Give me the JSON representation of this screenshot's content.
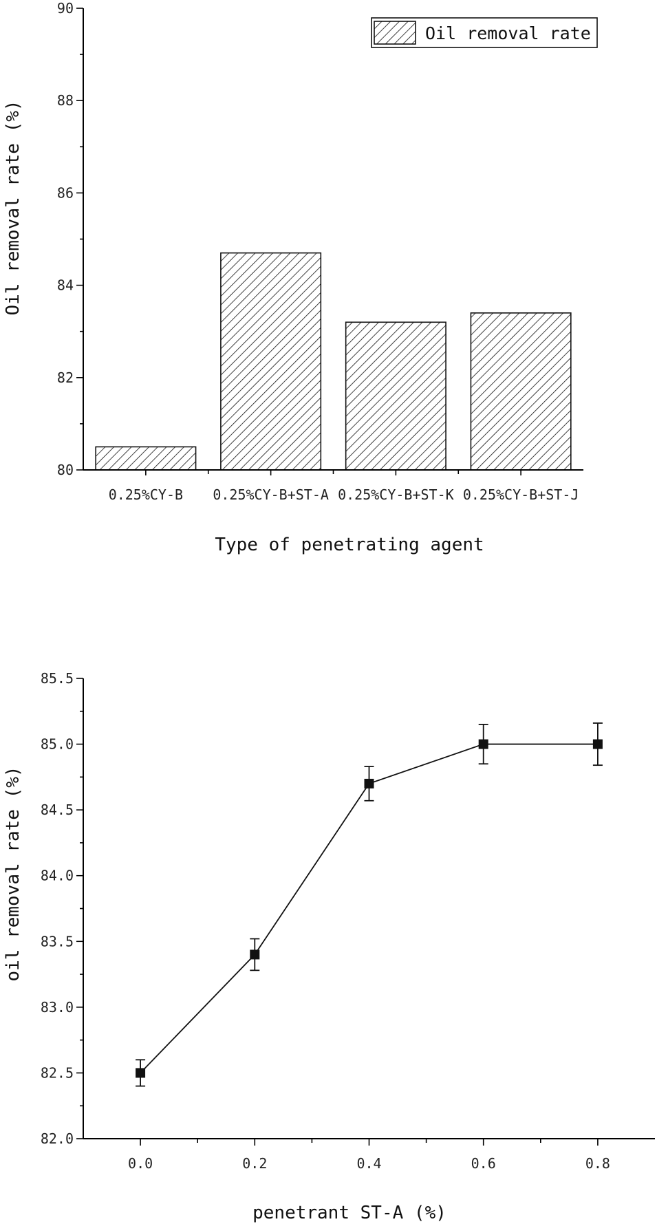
{
  "chart_data": [
    {
      "type": "bar",
      "ylabel": "Oil removal rate (%)",
      "xlabel": "Type of penetrating agent",
      "categories": [
        "0.25%CY-B",
        "0.25%CY-B+ST-A",
        "0.25%CY-B+ST-K",
        "0.25%CY-B+ST-J"
      ],
      "values": [
        80.5,
        84.7,
        83.2,
        83.4
      ],
      "ylim": [
        80,
        90
      ],
      "yticks": [
        "80",
        "82",
        "84",
        "86",
        "88",
        "90"
      ],
      "ytick_values": [
        80,
        82,
        84,
        86,
        88,
        90
      ],
      "series": [
        {
          "name": "Oil removal rate"
        }
      ],
      "legend": "top-right",
      "grid": false,
      "pattern": "diagonal-hatch"
    },
    {
      "type": "line",
      "ylabel": "oil removal rate (%)",
      "xlabel": "penetrant ST-A (%)",
      "x": [
        0.0,
        0.2,
        0.4,
        0.6,
        0.8
      ],
      "values": [
        82.5,
        83.4,
        84.7,
        85.0,
        85.0
      ],
      "errors": [
        0.1,
        0.12,
        0.13,
        0.15,
        0.16
      ],
      "xlim": [
        -0.1,
        0.9
      ],
      "ylim": [
        82.0,
        85.5
      ],
      "xticks": [
        "0.0",
        "0.2",
        "0.4",
        "0.6",
        "0.8"
      ],
      "xtick_values": [
        0.0,
        0.2,
        0.4,
        0.6,
        0.8
      ],
      "yticks": [
        "82.0",
        "82.5",
        "83.0",
        "83.5",
        "84.0",
        "84.5",
        "85.0",
        "85.5"
      ],
      "ytick_values": [
        82.0,
        82.5,
        83.0,
        83.5,
        84.0,
        84.5,
        85.0,
        85.5
      ],
      "marker": "square",
      "grid": false
    }
  ]
}
